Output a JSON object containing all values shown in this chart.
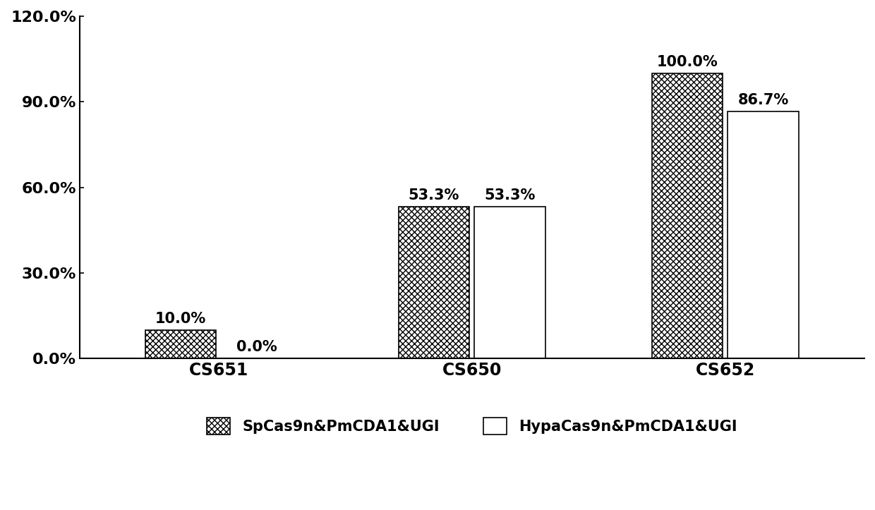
{
  "categories": [
    "CS651",
    "CS650",
    "CS652"
  ],
  "series1_label": "SpCas9n&PmCDA1&UGI",
  "series2_label": "HypaCas9n&PmCDA1&UGI",
  "series1_values": [
    10.0,
    53.3,
    100.0
  ],
  "series2_values": [
    0.0,
    53.3,
    86.7
  ],
  "series1_labels": [
    "10.0%",
    "53.3%",
    "100.0%"
  ],
  "series2_labels": [
    "0.0%",
    "53.3%",
    "86.7%"
  ],
  "ylim": [
    0,
    120
  ],
  "yticks": [
    0,
    30,
    60,
    90,
    120
  ],
  "ytick_labels": [
    "0.0%",
    "30.0%",
    "60.0%",
    "90.0%",
    "120.0%"
  ],
  "bar_width": 0.28,
  "background_color": "#ffffff",
  "bar1_hatch": "xxxx",
  "bar2_hatch": "====",
  "bar_facecolor": "#ffffff",
  "bar_edgecolor": "#000000",
  "tick_fontsize": 16,
  "legend_fontsize": 15,
  "annotation_fontsize": 15,
  "xtick_fontsize": 17
}
